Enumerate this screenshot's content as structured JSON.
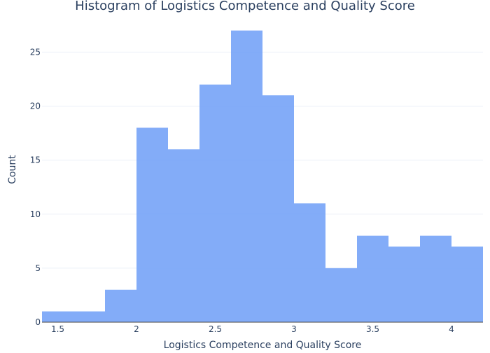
{
  "chart_data": {
    "type": "bar",
    "title": "Histogram of Logistics Competence and Quality Score",
    "xlabel": "Logistics Competence and Quality Score",
    "ylabel": "Count",
    "bin_width": 0.2,
    "bins": [
      {
        "start": 1.4,
        "end": 1.6,
        "count": 1
      },
      {
        "start": 1.6,
        "end": 1.8,
        "count": 1
      },
      {
        "start": 1.8,
        "end": 2.0,
        "count": 3
      },
      {
        "start": 2.0,
        "end": 2.2,
        "count": 18
      },
      {
        "start": 2.2,
        "end": 2.4,
        "count": 16
      },
      {
        "start": 2.4,
        "end": 2.6,
        "count": 22
      },
      {
        "start": 2.6,
        "end": 2.8,
        "count": 27
      },
      {
        "start": 2.8,
        "end": 3.0,
        "count": 21
      },
      {
        "start": 3.0,
        "end": 3.2,
        "count": 11
      },
      {
        "start": 3.2,
        "end": 3.4,
        "count": 5
      },
      {
        "start": 3.4,
        "end": 3.6,
        "count": 8
      },
      {
        "start": 3.6,
        "end": 3.8,
        "count": 7
      },
      {
        "start": 3.8,
        "end": 4.0,
        "count": 8
      },
      {
        "start": 4.0,
        "end": 4.2,
        "count": 7
      }
    ],
    "xlim": [
      1.4,
      4.2
    ],
    "ylim": [
      0,
      28.4
    ],
    "x_ticks": [
      {
        "value": 1.5,
        "label": "1.5"
      },
      {
        "value": 2.0,
        "label": "2"
      },
      {
        "value": 2.5,
        "label": "2.5"
      },
      {
        "value": 3.0,
        "label": "3"
      },
      {
        "value": 3.5,
        "label": "3.5"
      },
      {
        "value": 4.0,
        "label": "4"
      }
    ],
    "y_ticks": [
      {
        "value": 0,
        "label": "0"
      },
      {
        "value": 5,
        "label": "5"
      },
      {
        "value": 10,
        "label": "10"
      },
      {
        "value": 15,
        "label": "15"
      },
      {
        "value": 20,
        "label": "20"
      },
      {
        "value": 25,
        "label": "25"
      }
    ],
    "grid": true,
    "legend": "none",
    "colors": {
      "bar": "#6d9ef7",
      "bar_opacity": 0.85,
      "grid": "#ebf0f8",
      "text": "#2a3f5f",
      "zeroline": "#444444"
    }
  }
}
